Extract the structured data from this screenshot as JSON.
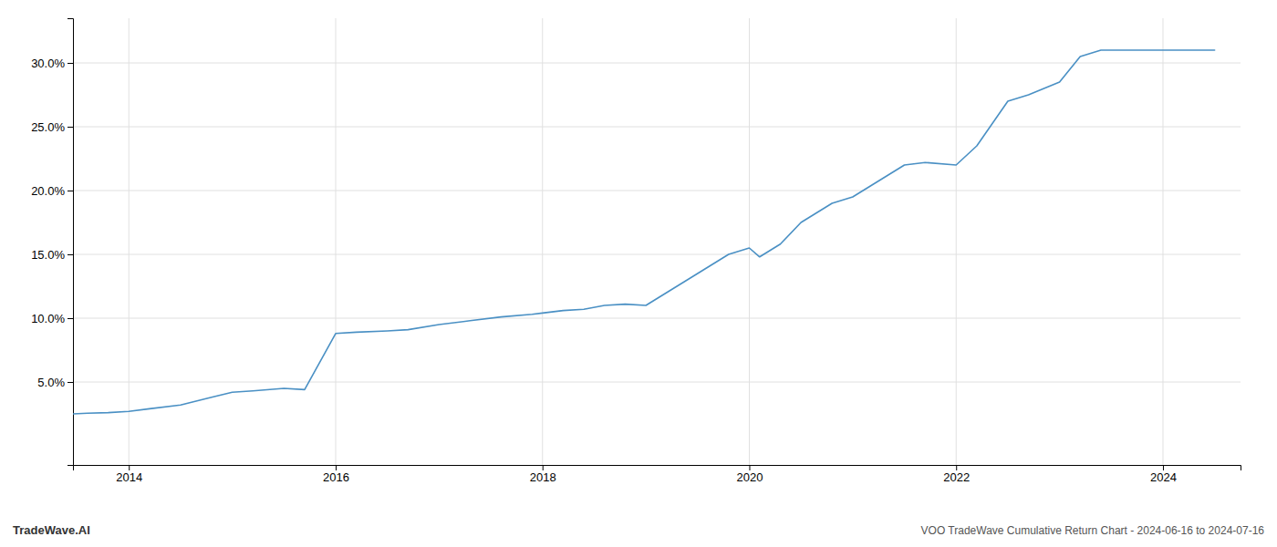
{
  "chart_data": {
    "type": "line",
    "title": "VOO TradeWave Cumulative Return Chart - 2024-06-16 to 2024-07-16",
    "annotations": [
      "TradeWave.AI"
    ],
    "color": "#4a90c4",
    "x": [
      2013.46,
      2013.6,
      2013.8,
      2014.0,
      2014.2,
      2014.5,
      2014.8,
      2015.0,
      2015.2,
      2015.5,
      2015.7,
      2016.0,
      2016.2,
      2016.5,
      2016.7,
      2017.0,
      2017.3,
      2017.6,
      2017.9,
      2018.0,
      2018.2,
      2018.4,
      2018.6,
      2018.8,
      2019.0,
      2019.2,
      2019.5,
      2019.8,
      2020.0,
      2020.1,
      2020.3,
      2020.5,
      2020.8,
      2021.0,
      2021.2,
      2021.5,
      2021.7,
      2022.0,
      2022.2,
      2022.5,
      2022.7,
      2023.0,
      2023.2,
      2023.4,
      2023.6,
      2024.0,
      2024.3,
      2024.5
    ],
    "values": [
      2.5,
      2.55,
      2.6,
      2.7,
      2.9,
      3.2,
      3.8,
      4.2,
      4.3,
      4.5,
      4.4,
      8.8,
      8.9,
      9.0,
      9.1,
      9.5,
      9.8,
      10.1,
      10.3,
      10.4,
      10.6,
      10.7,
      11.0,
      11.1,
      11.0,
      12.0,
      13.5,
      15.0,
      15.5,
      14.8,
      15.8,
      17.5,
      19.0,
      19.5,
      20.5,
      22.0,
      22.2,
      22.0,
      23.5,
      27.0,
      27.5,
      28.5,
      30.5,
      31.0,
      31.0,
      31.0,
      31.0,
      31.0
    ],
    "xlim": [
      2013.46,
      2024.75
    ],
    "ylim": [
      -1.5,
      33.5
    ],
    "xticks": [
      2014,
      2016,
      2018,
      2020,
      2022,
      2024
    ],
    "yticks": [
      {
        "value": 5.0,
        "label": "5.0%"
      },
      {
        "value": 10.0,
        "label": "10.0%"
      },
      {
        "value": 15.0,
        "label": "15.0%"
      },
      {
        "value": 20.0,
        "label": "20.0%"
      },
      {
        "value": 25.0,
        "label": "25.0%"
      },
      {
        "value": 30.0,
        "label": "30.0%"
      }
    ],
    "grid": true
  }
}
